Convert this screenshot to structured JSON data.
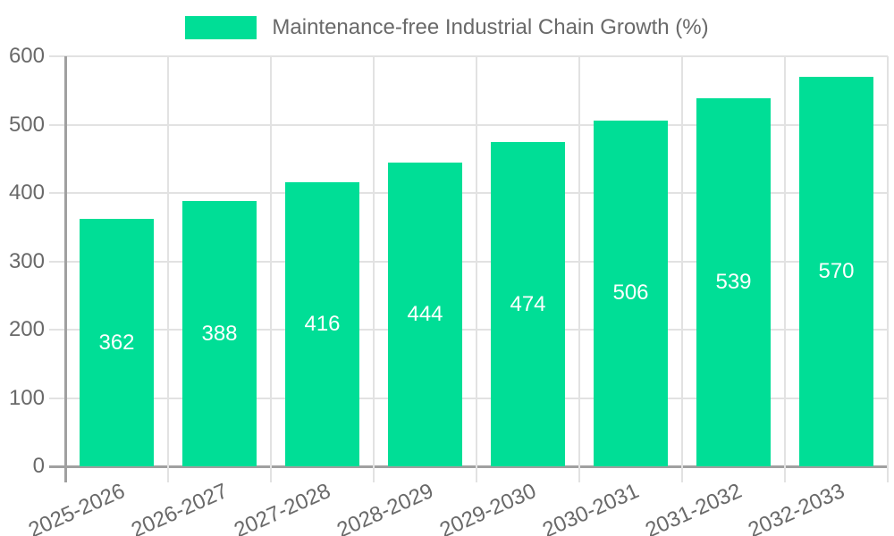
{
  "chart_data": {
    "type": "bar",
    "title": "Maintenance-free Industrial Chain Growth (%)",
    "legend_entries": [
      "Maintenance-free Industrial Chain Growth (%)"
    ],
    "legend_position": "top",
    "categories": [
      "2025-2026",
      "2026-2027",
      "2027-2028",
      "2028-2029",
      "2029-2030",
      "2030-2031",
      "2031-2032",
      "2032-2033"
    ],
    "values": [
      362,
      388,
      416,
      444,
      474,
      506,
      539,
      570
    ],
    "xlabel": "",
    "ylabel": "",
    "ylim": [
      0,
      600
    ],
    "yticks": [
      0,
      100,
      200,
      300,
      400,
      500,
      600
    ],
    "grid": true,
    "x_label_rotation_deg": -24,
    "colors": {
      "bar": "#00DE96",
      "value_label": "#ffffff",
      "tick_label": "#696969",
      "legend_text": "#696969",
      "gridline": "#e2e2e2",
      "axis_line": "#a0a0a0",
      "background": "#ffffff"
    }
  }
}
